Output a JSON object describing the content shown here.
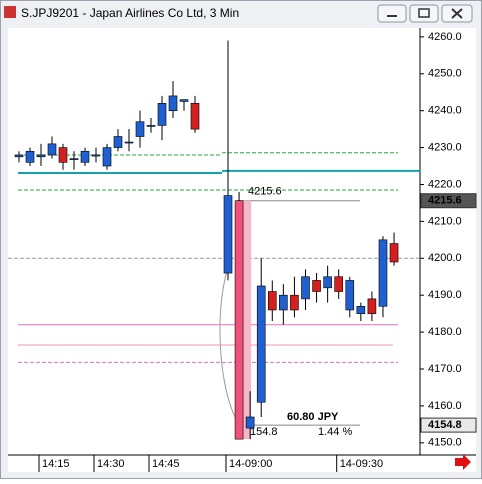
{
  "window_title": "S.JPJ9201 - Japan Airlines Co Ltd, 3 Min",
  "chart_data": {
    "type": "candlestick",
    "categories": [
      null,
      null,
      "14:15",
      null,
      null,
      null,
      null,
      "14:30",
      null,
      null,
      null,
      null,
      "14:45",
      null,
      null,
      null,
      null,
      "14-09:00",
      null,
      null,
      null,
      null,
      null,
      null,
      null,
      null,
      null,
      "14-09:30",
      null,
      null,
      null,
      null,
      null
    ],
    "open": [
      4228,
      4229,
      4228,
      4231,
      4226,
      4227,
      4229,
      4228,
      4230,
      4233,
      4231.5,
      4237,
      4236,
      4242,
      4244,
      4243,
      4235,
      4217,
      4151,
      4157,
      4192.5,
      4186,
      4190,
      4186,
      4195,
      4191,
      4195,
      4191,
      4194,
      4187,
      4185,
      4205,
      4199
    ],
    "high": [
      4229,
      4230,
      4231,
      4233,
      4231,
      4229,
      4230,
      4230,
      4231,
      4235,
      4235,
      4240,
      4238,
      4244,
      4248,
      4243,
      4244,
      4259,
      4218,
      4164,
      4200,
      4194,
      4193,
      4195,
      4197,
      4196,
      4198,
      4197,
      4195,
      4188,
      4191,
      4206,
      4207
    ],
    "low": [
      4226,
      4225,
      4225,
      4227,
      4224,
      4224,
      4225,
      4226,
      4224,
      4229,
      4229,
      4230,
      4234,
      4232,
      4238,
      4240,
      4234,
      4194,
      4151,
      4151,
      4157,
      4183,
      4182,
      4184,
      4186,
      4188,
      4188,
      4189,
      4184,
      4183,
      4183,
      4184,
      4198
    ],
    "close": [
      4227.5,
      4226,
      4227.5,
      4228,
      4230,
      4226.8,
      4226,
      4227.7,
      4225,
      4230,
      4231.3,
      4233,
      4235.8,
      4236,
      4240,
      4242.5,
      4242,
      4196,
      4215.6,
      4154,
      4161,
      4191,
      4186,
      4190,
      4189,
      4194,
      4192,
      4195,
      4186,
      4185,
      4189,
      4187,
      4204
    ],
    "up_color": "#d42020",
    "down_color": "#1f5fd0",
    "selected_index": 18,
    "ylim": [
      4146.7,
      4262.4
    ],
    "yticks": [
      {
        "value": 4150,
        "label": "4150.0"
      },
      {
        "value": 4160,
        "label": "4160.0"
      },
      {
        "value": 4170,
        "label": "4170.0"
      },
      {
        "value": 4180,
        "label": "4180.0"
      },
      {
        "value": 4190,
        "label": "4190.0"
      },
      {
        "value": 4200,
        "label": "4200.0"
      },
      {
        "value": 4210,
        "label": "4210.0"
      },
      {
        "value": 4220,
        "label": "4220.0"
      },
      {
        "value": 4230,
        "label": "4230.0"
      },
      {
        "value": 4240,
        "label": "4240.0"
      },
      {
        "value": 4250,
        "label": "4250.0"
      },
      {
        "value": 4260,
        "label": "4260.0"
      }
    ],
    "grid": false,
    "levels": [
      {
        "value": 4228.0,
        "color": "#22aa44",
        "style": "dashed"
      },
      {
        "value": 4228.6,
        "color": "#22aa44",
        "style": "dashed"
      },
      {
        "value": 4223.1,
        "color": "#12a3a8",
        "style": "solid"
      },
      {
        "value": 4223.7,
        "color": "#12a3a8",
        "style": "solid"
      },
      {
        "value": 4218.5,
        "color": "#22aa44",
        "style": "dashed"
      },
      {
        "value": 4200,
        "color": "#999999",
        "style": "dashed"
      },
      {
        "value": 4182,
        "color": "#e070c0",
        "style": "solid"
      },
      {
        "value": 4176.5,
        "color": "#f090c0",
        "style": "solid"
      },
      {
        "value": 4171.8,
        "color": "#e070c0",
        "style": "dashed"
      }
    ],
    "price_labels": [
      {
        "value": 4215.6,
        "label": "4215.6"
      },
      {
        "value": 4154.8,
        "label": "4154.8"
      }
    ],
    "measure": {
      "start": {
        "value": 4215.6,
        "label": "4215.6"
      },
      "end": 4154.8
    },
    "annotations": [
      "60.80 JPY",
      "154.8",
      "1.44 %"
    ]
  }
}
